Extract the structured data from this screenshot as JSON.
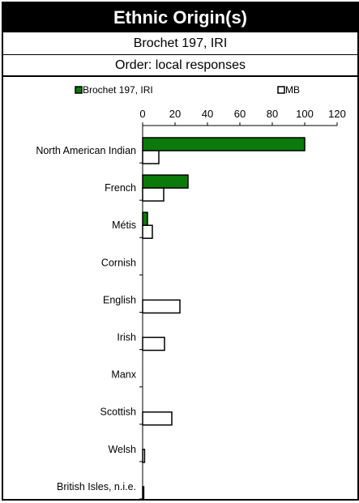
{
  "header": {
    "title": "Ethnic Origin(s)",
    "subtitle": "Brochet 197, IRI",
    "order": "Order: local responses"
  },
  "colors": {
    "local_series": "#0a7a0a",
    "mb_series": "#ffffff",
    "title_background": "#000000"
  },
  "chart_data": {
    "type": "bar",
    "orientation": "horizontal",
    "categories": [
      "North American Indian",
      "French",
      "Métis",
      "Cornish",
      "English",
      "Irish",
      "Manx",
      "Scottish",
      "Welsh",
      "British Isles, n.i.e."
    ],
    "series": [
      {
        "name": "Brochet 197, IRI",
        "values": [
          100,
          28,
          3,
          0,
          0,
          0,
          0,
          0,
          0,
          0
        ]
      },
      {
        "name": "MB",
        "values": [
          10,
          13,
          6,
          0,
          23,
          13.5,
          0,
          18,
          1.2,
          0.7
        ]
      }
    ],
    "xlim": [
      0,
      120
    ],
    "xticks": [
      "0",
      "20",
      "40",
      "60",
      "80",
      "100",
      "120"
    ],
    "legend_position": "top",
    "grid": false
  }
}
